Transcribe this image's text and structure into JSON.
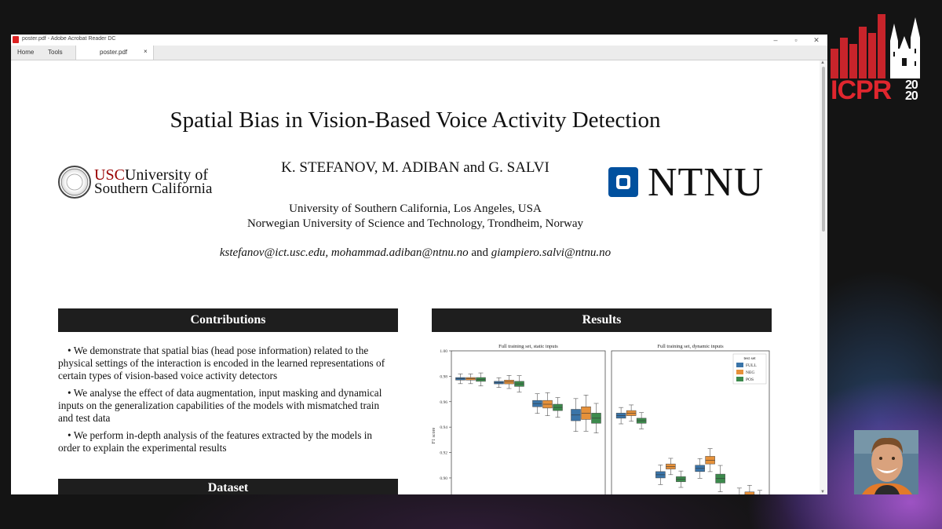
{
  "window": {
    "title": "poster.pdf - Adobe Acrobat Reader DC",
    "nav": [
      "Home",
      "Tools"
    ],
    "tab": {
      "label": "poster.pdf",
      "close": "×"
    },
    "controls": {
      "minimize": "–",
      "maximize": "▫",
      "close": "✕"
    }
  },
  "logo": {
    "word": "ICPR",
    "year_top": "20",
    "year_bottom": "20",
    "bar_color": "#c8242b"
  },
  "poster": {
    "title": "Spatial Bias in Vision-Based Voice Activity Detection",
    "authors": "K. STEFANOV, M. ADIBAN and G. SALVI",
    "affiliations": [
      "University of Southern California, Los Angeles, USA",
      "Norwegian University of Science and Technology, Trondheim, Norway"
    ],
    "emails": {
      "part1": "kstefanov@ict.usc.edu, mohammad.adiban@ntnu.no",
      "and": " and ",
      "part2": "giampiero.salvi@ntnu.no"
    },
    "usc_logo": {
      "usc": "USC",
      "line1": "University of",
      "line2": "Southern California"
    },
    "ntnu_logo": {
      "text": "NTNU",
      "color": "#00509e"
    },
    "contributions": {
      "heading": "Contributions",
      "bullets": [
        "• We demonstrate that spatial bias (head pose information) related to the physical settings of the interaction is encoded in the learned representations of certain types of vision-based voice activity detectors",
        "• We analyse the effect of data augmentation, input masking and dynamical inputs on the generalization capabilities of the models with mismatched train and test data",
        "• We perform in-depth analysis of the features extracted by the models in order to explain the experimental results"
      ]
    },
    "dataset": {
      "heading": "Dataset"
    },
    "results": {
      "heading": "Results"
    }
  },
  "chart_data": {
    "type": "box",
    "ylabel": "F1 score",
    "yticks": [
      "1.00",
      "0.98",
      "0.96",
      "0.94",
      "0.92",
      "0.90"
    ],
    "ylim": [
      0.887,
      1.0
    ],
    "panels": [
      {
        "title": "Full training set, static inputs",
        "groups": [
          {
            "FULL": [
              0.977,
              0.979
            ],
            "NEG": [
              0.977,
              0.979
            ],
            "POS": [
              0.976,
              0.979
            ]
          },
          {
            "FULL": [
              0.974,
              0.976
            ],
            "NEG": [
              0.974,
              0.977
            ],
            "POS": [
              0.972,
              0.976
            ]
          },
          {
            "FULL": [
              0.956,
              0.961
            ],
            "NEG": [
              0.955,
              0.961
            ],
            "POS": [
              0.953,
              0.958
            ]
          },
          {
            "FULL": [
              0.945,
              0.954
            ],
            "NEG": [
              0.946,
              0.956
            ],
            "POS": [
              0.943,
              0.951
            ]
          }
        ]
      },
      {
        "title": "Full training set, dynamic inputs",
        "groups": [
          {
            "FULL": [
              0.947,
              0.951
            ],
            "NEG": [
              0.949,
              0.953
            ],
            "POS": [
              0.943,
              0.947
            ]
          },
          {
            "FULL": [
              0.9,
              0.905
            ],
            "NEG": [
              0.907,
              0.911
            ],
            "POS": [
              0.897,
              0.901
            ]
          },
          {
            "FULL": [
              0.905,
              0.91
            ],
            "NEG": [
              0.911,
              0.917
            ],
            "POS": [
              0.896,
              0.903
            ]
          },
          {
            "FULL": [
              0.88,
              0.886
            ],
            "NEG": [
              0.884,
              0.889
            ],
            "POS": [
              0.88,
              0.885
            ]
          }
        ]
      }
    ],
    "legend": {
      "title": "test set",
      "entries": [
        "FULL",
        "NEG",
        "POS"
      ],
      "placement": "top-right"
    },
    "colors": {
      "FULL": "#3a74a8",
      "NEG": "#e6913a",
      "POS": "#3c8a4c"
    }
  }
}
